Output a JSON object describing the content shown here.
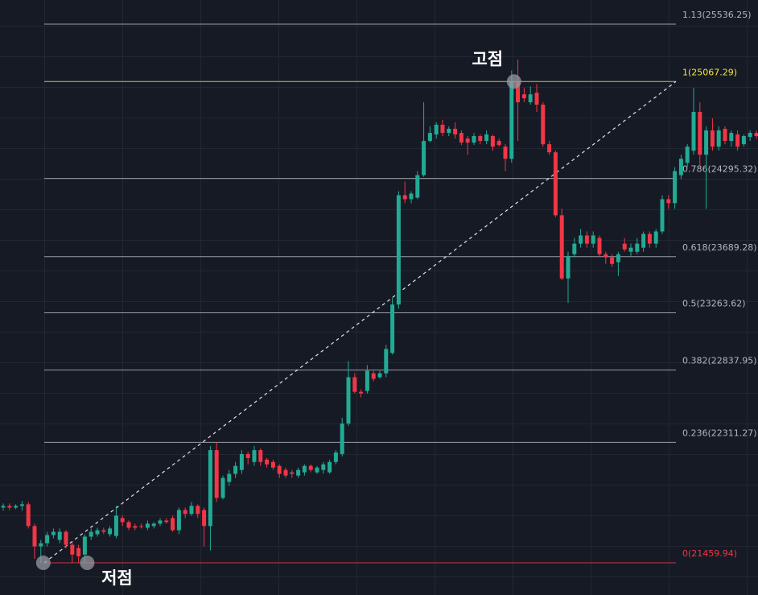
{
  "chart_data": {
    "type": "candlestick",
    "log_scale": true,
    "up_color": "#22ab94",
    "down_color": "#f23645",
    "ylim": [
      21238,
      25736
    ],
    "fib_levels": [
      {
        "value": 25536.25,
        "label": "1.13(25536.25)",
        "color": "#b2b5be"
      },
      {
        "value": 25067.29,
        "label": "1(25067.29)",
        "color": "#f0e442"
      },
      {
        "value": 24295.32,
        "label": "0.786(24295.32)",
        "color": "#b2b5be"
      },
      {
        "value": 23689.28,
        "label": "0.618(23689.28)",
        "color": "#b2b5be"
      },
      {
        "value": 23263.62,
        "label": "0.5(23263.62)",
        "color": "#b2b5be"
      },
      {
        "value": 22837.95,
        "label": "0.382(22837.95)",
        "color": "#b2b5be"
      },
      {
        "value": 22311.27,
        "label": "0.236(22311.27)",
        "color": "#b2b5be"
      },
      {
        "value": 21459.94,
        "label": "0(21459.94)",
        "color": "#f23645"
      }
    ],
    "annotations": [
      {
        "text": "고점"
      },
      {
        "text": "저점"
      }
    ],
    "open": [
      21846,
      21858,
      21846,
      21858,
      21869,
      21716,
      21574,
      21596,
      21653,
      21619,
      21676,
      21585,
      21562,
      21517,
      21642,
      21659,
      21687,
      21659,
      21647,
      21772,
      21744,
      21716,
      21716,
      21704,
      21716,
      21733,
      21755,
      21772,
      21687,
      21829,
      21801,
      21858,
      21829,
      21716,
      22255,
      21914,
      22028,
      22085,
      22113,
      22227,
      22170,
      22255,
      22187,
      22170,
      22142,
      22113,
      22096,
      22073,
      22096,
      22142,
      22096,
      22113,
      22096,
      22170,
      22227,
      22447,
      22785,
      22678,
      22684,
      22814,
      22785,
      22814,
      22964,
      23326,
      24164,
      24133,
      24145,
      24321,
      24591,
      24643,
      24720,
      24655,
      24688,
      24655,
      24610,
      24578,
      24630,
      24591,
      24630,
      24591,
      24546,
      24450,
      25067,
      24964,
      24900,
      24977,
      24881,
      24565,
      24501,
      24008,
      23523,
      23708,
      23789,
      23852,
      23789,
      23833,
      23708,
      23684,
      23647,
      23789,
      23727,
      23727,
      23758,
      23864,
      23789,
      23883,
      24133,
      24102,
      24321,
      24418,
      24514,
      24823,
      24482,
      24675,
      24546,
      24688,
      24591,
      24643,
      24565,
      24623,
      24655
    ],
    "high": [
      21875,
      21875,
      21869,
      21892,
      21886,
      21733,
      21619,
      21676,
      21699,
      21699,
      21687,
      21602,
      21585,
      21659,
      21699,
      21704,
      21704,
      21716,
      21858,
      21789,
      21755,
      21733,
      21733,
      21755,
      21744,
      21772,
      21772,
      21789,
      21846,
      21846,
      21886,
      21869,
      21846,
      22284,
      22311,
      22073,
      22113,
      22170,
      22255,
      22244,
      22284,
      22267,
      22198,
      22187,
      22153,
      22130,
      22113,
      22130,
      22153,
      22153,
      22142,
      22170,
      22187,
      22255,
      22489,
      22904,
      22814,
      22696,
      22874,
      22832,
      22832,
      23024,
      23375,
      24195,
      24270,
      24195,
      24353,
      24900,
      24707,
      24739,
      24758,
      24707,
      24739,
      24675,
      24630,
      24655,
      24643,
      24675,
      24643,
      24610,
      24565,
      25157,
      25247,
      25016,
      25028,
      25048,
      24900,
      24591,
      24514,
      24058,
      23727,
      23833,
      23902,
      23883,
      23883,
      23852,
      23727,
      23708,
      23727,
      23833,
      23789,
      23833,
      23883,
      23883,
      23902,
      24164,
      24164,
      24385,
      24482,
      24565,
      25016,
      24900,
      24707,
      24771,
      24707,
      24707,
      24675,
      24675,
      24643,
      24675,
      24675
    ],
    "low": [
      21824,
      21829,
      21835,
      21824,
      21699,
      21488,
      21460,
      21574,
      21630,
      21596,
      21562,
      21460,
      21460,
      21460,
      21619,
      21642,
      21659,
      21642,
      21630,
      21716,
      21687,
      21687,
      21699,
      21687,
      21699,
      21716,
      21733,
      21676,
      21659,
      21772,
      21789,
      21772,
      21574,
      21545,
      21886,
      21903,
      22000,
      22056,
      22085,
      22153,
      22142,
      22142,
      22130,
      22113,
      22056,
      22056,
      22056,
      22056,
      22073,
      22096,
      22085,
      22085,
      22085,
      22153,
      22210,
      22429,
      22666,
      22637,
      22666,
      22755,
      22773,
      22785,
      22952,
      23295,
      24102,
      24102,
      24133,
      24308,
      24578,
      24610,
      24630,
      24630,
      24610,
      24559,
      24482,
      24559,
      24565,
      24565,
      24514,
      24546,
      24353,
      24418,
      24591,
      24900,
      24881,
      24823,
      24546,
      24482,
      23995,
      23511,
      23338,
      23684,
      23758,
      23758,
      23758,
      23684,
      23634,
      23610,
      23542,
      23727,
      23695,
      23708,
      23727,
      23758,
      23758,
      23864,
      24058,
      24058,
      24289,
      24385,
      24482,
      24385,
      24058,
      24514,
      24514,
      24565,
      24546,
      24514,
      24546,
      24591,
      24610
    ],
    "close": [
      21858,
      21846,
      21858,
      21869,
      21716,
      21574,
      21596,
      21653,
      21676,
      21676,
      21585,
      21517,
      21505,
      21642,
      21676,
      21687,
      21676,
      21699,
      21789,
      21744,
      21704,
      21704,
      21710,
      21733,
      21733,
      21755,
      21744,
      21687,
      21829,
      21801,
      21858,
      21801,
      21716,
      22255,
      21914,
      22056,
      22085,
      22142,
      22227,
      22198,
      22255,
      22170,
      22153,
      22130,
      22085,
      22073,
      22085,
      22113,
      22142,
      22113,
      22130,
      22153,
      22170,
      22238,
      22447,
      22785,
      22678,
      22666,
      22832,
      22773,
      22814,
      22994,
      23326,
      24164,
      24133,
      24177,
      24321,
      24591,
      24655,
      24720,
      24655,
      24688,
      24643,
      24578,
      24578,
      24630,
      24591,
      24643,
      24546,
      24559,
      24450,
      25067,
      24900,
      24932,
      24964,
      24881,
      24565,
      24501,
      24008,
      23523,
      23695,
      23789,
      23852,
      23789,
      23852,
      23708,
      23684,
      23634,
      23708,
      23745,
      23758,
      23789,
      23864,
      23789,
      23883,
      24133,
      24102,
      24353,
      24450,
      24546,
      24823,
      24482,
      24675,
      24546,
      24675,
      24591,
      24655,
      24546,
      24630,
      24655,
      24630
    ]
  }
}
